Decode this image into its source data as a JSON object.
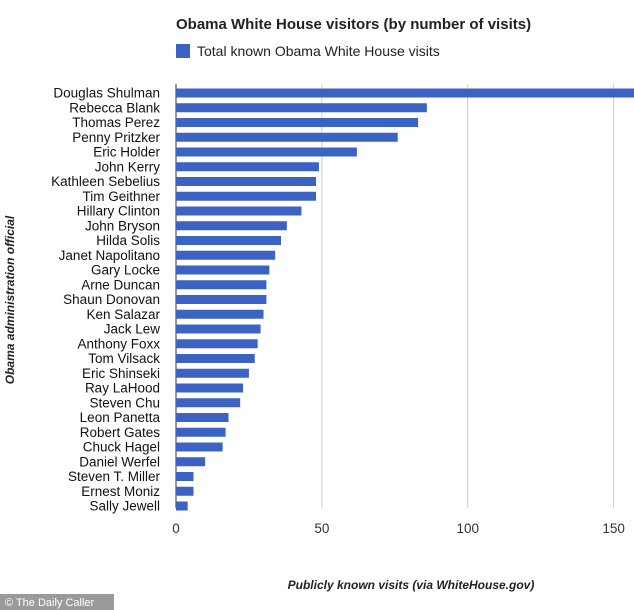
{
  "chart_data": {
    "type": "bar",
    "orientation": "horizontal",
    "title": "Obama White House visitors (by number of visits)",
    "legend": {
      "position": "top",
      "entries": [
        {
          "label": "Total known Obama White House visits",
          "color": "#3c63c4"
        }
      ]
    },
    "xlabel": "Publicly known visits (via WhiteHouse.gov)",
    "ylabel": "Obama administration official",
    "xlim": [
      0,
      157
    ],
    "xticks": [
      0,
      50,
      100,
      150
    ],
    "grid": true,
    "bar_color": "#3c63c4",
    "categories": [
      "Douglas Shulman",
      "Rebecca Blank",
      "Thomas Perez",
      "Penny Pritzker",
      "Eric Holder",
      "John Kerry",
      "Kathleen Sebelius",
      "Tim Geithner",
      "Hillary Clinton",
      "John Bryson",
      "Hilda Solis",
      "Janet Napolitano",
      "Gary Locke",
      "Arne Duncan",
      "Shaun Donovan",
      "Ken Salazar",
      "Jack Lew",
      "Anthony Foxx",
      "Tom Vilsack",
      "Eric Shinseki",
      "Ray LaHood",
      "Steven Chu",
      "Leon Panetta",
      "Robert Gates",
      "Chuck Hagel",
      "Daniel Werfel",
      "Steven T. Miller",
      "Ernest Moniz",
      "Sally Jewell"
    ],
    "values": [
      157,
      86,
      83,
      76,
      62,
      49,
      48,
      48,
      43,
      38,
      36,
      34,
      32,
      31,
      31,
      30,
      29,
      28,
      27,
      25,
      23,
      22,
      18,
      17,
      16,
      10,
      6,
      6,
      4
    ]
  },
  "credit": "© The Daily Caller"
}
